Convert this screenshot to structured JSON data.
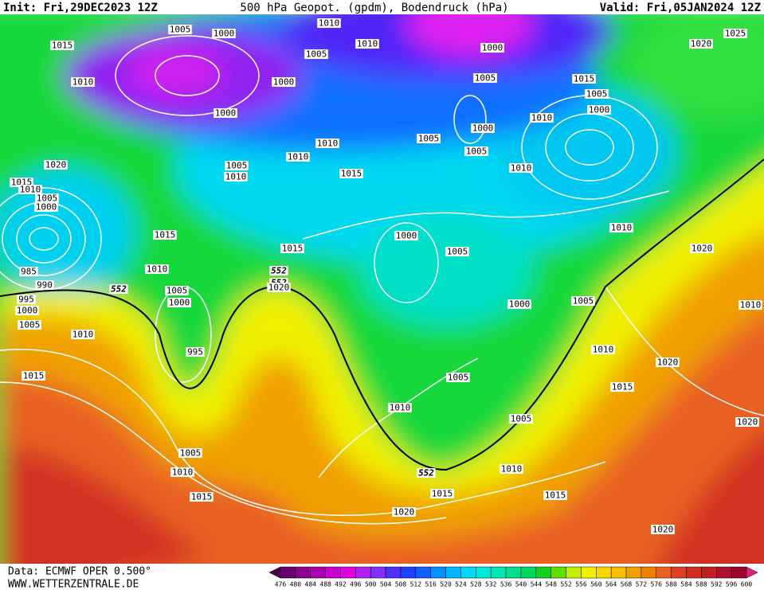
{
  "header": {
    "init": "Init: Fri,29DEC2023 12Z",
    "title": "500 hPa Geopot. (gpdm), Bodendruck (hPa)",
    "valid": "Valid: Fri,05JAN2024 12Z"
  },
  "map": {
    "contour_labels": [
      "552",
      "552",
      "552",
      "552"
    ],
    "isobar_labels": [
      "1005",
      "1000",
      "1010",
      "1010",
      "1005",
      "1000",
      "1025",
      "1020",
      "1015",
      "1010",
      "1000",
      "1005",
      "1015",
      "1005",
      "1000",
      "1000",
      "1010",
      "1000",
      "1005",
      "1010",
      "1005",
      "1010",
      "1005",
      "1010",
      "1020",
      "1010",
      "1015",
      "1015",
      "1010",
      "1005",
      "1000",
      "1015",
      "1010",
      "1000",
      "1015",
      "1005",
      "1020",
      "1010",
      "1020",
      "985",
      "990",
      "1005",
      "995",
      "1000",
      "1000",
      "1005",
      "1010",
      "1000",
      "1005",
      "1010",
      "1010",
      "995",
      "1020",
      "1015",
      "1005",
      "1015",
      "1010",
      "1005",
      "1020",
      "1005",
      "1010",
      "1010",
      "1015",
      "1015",
      "1015",
      "1020",
      "1020"
    ]
  },
  "footer": {
    "source": "Data: ECMWF OPER 0.500°",
    "site": "WWW.WETTERZENTRALE.DE"
  },
  "colorbar": {
    "labels": [
      476,
      480,
      484,
      488,
      492,
      496,
      500,
      504,
      508,
      512,
      516,
      520,
      524,
      528,
      532,
      536,
      540,
      544,
      548,
      552,
      556,
      560,
      564,
      568,
      572,
      576,
      580,
      584,
      588,
      592,
      596,
      600
    ],
    "colors": [
      "#4b0048",
      "#6a0070",
      "#8a0090",
      "#aa00b0",
      "#c800d0",
      "#e000e0",
      "#b020f0",
      "#8030f8",
      "#5030ff",
      "#2040ff",
      "#1060ff",
      "#0090ff",
      "#00b8ff",
      "#00d8f8",
      "#00e8d8",
      "#00e8b0",
      "#00e090",
      "#00d860",
      "#10d020",
      "#60e000",
      "#c0f000",
      "#f0f000",
      "#f8d800",
      "#f8c000",
      "#f0a000",
      "#f08000",
      "#e86020",
      "#e04020",
      "#d03020",
      "#c02020",
      "#b01030",
      "#a00030",
      "#e02080"
    ]
  }
}
